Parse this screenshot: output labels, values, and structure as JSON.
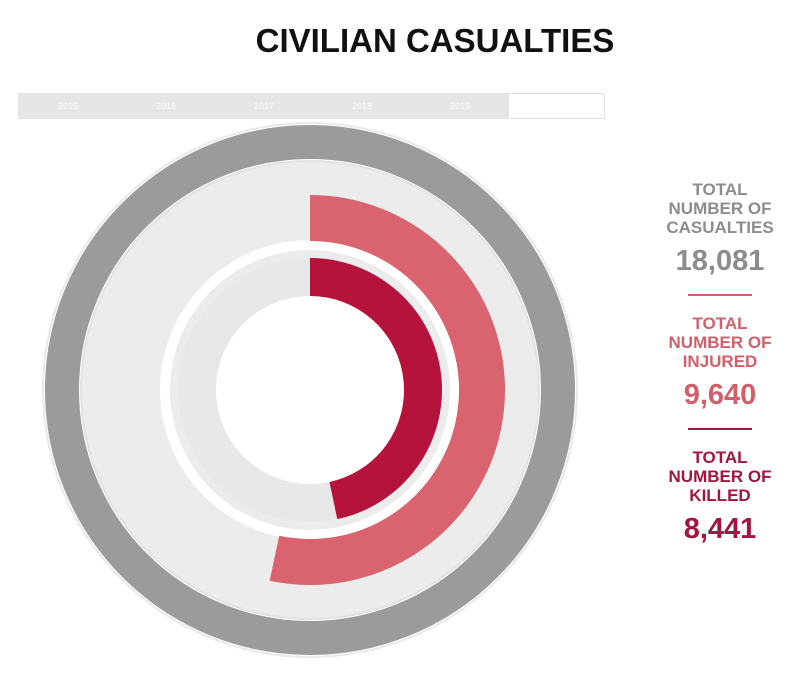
{
  "chart_data": {
    "type": "radial-bar",
    "title": "CIVILIAN CASUALTIES",
    "tabs": [
      "2015",
      "2016",
      "2017",
      "2018",
      "2019"
    ],
    "rlim": [
      0,
      18081
    ],
    "series": [
      {
        "name": "TOTAL NUMBER OF CASUALTIES",
        "color": "#9b9b9b",
        "label_color": "#8c8c8c",
        "values": [
          18081
        ],
        "value_labels": [
          "18,081"
        ]
      },
      {
        "name": "TOTAL NUMBER OF INJURED",
        "color": "#d9636e",
        "label_color": "#d1606b",
        "values": [
          9640
        ],
        "value_labels": [
          "9,640"
        ]
      },
      {
        "name": "TOTAL NUMBER OF KILLED",
        "color": "#b5123c",
        "label_color": "#a3153f",
        "values": [
          8441
        ],
        "value_labels": [
          "8,441"
        ]
      }
    ]
  }
}
